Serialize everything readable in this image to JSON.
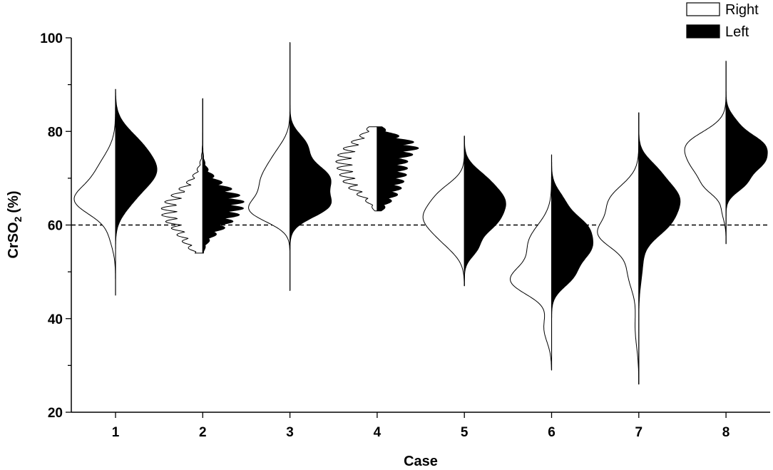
{
  "chart_data": {
    "type": "split-violin",
    "xlabel": "Case",
    "ylabel_main": "CrSO",
    "ylabel_sub": "2",
    "ylabel_unit": "(%)",
    "ylim": [
      20,
      100
    ],
    "yticks": [
      20,
      40,
      60,
      80,
      100
    ],
    "categories": [
      "1",
      "2",
      "3",
      "4",
      "5",
      "6",
      "7",
      "8"
    ],
    "reference_line": {
      "value": 60,
      "style": "dashed"
    },
    "legend": {
      "position": "top-right",
      "items": [
        {
          "label": "Right",
          "fill": "#ffffff"
        },
        {
          "label": "Left",
          "fill": "#000000"
        }
      ]
    },
    "series": [
      {
        "name": "Right",
        "side": "left",
        "fill": "#ffffff",
        "ranges": [
          [
            45,
            89
          ],
          [
            54,
            87
          ],
          [
            46,
            99
          ],
          [
            63,
            81
          ],
          [
            47,
            79
          ],
          [
            29,
            75
          ],
          [
            26,
            84
          ],
          [
            56,
            95
          ]
        ],
        "peaks": [
          [
            [
              65,
              1.0,
              3.0
            ],
            [
              71,
              0.5,
              4.0
            ],
            [
              58,
              0.15,
              3.0
            ]
          ],
          [
            [
              63,
              1.0,
              4.5
            ],
            [
              56,
              0.15,
              2.0
            ]
          ],
          [
            [
              63,
              1.0,
              2.5
            ],
            [
              69,
              0.8,
              3.5
            ],
            [
              75,
              0.3,
              3.0
            ]
          ],
          [
            [
              74,
              1.0,
              4.0
            ],
            [
              68,
              0.4,
              2.5
            ]
          ],
          [
            [
              62,
              1.0,
              3.0
            ],
            [
              57,
              0.5,
              3.0
            ],
            [
              67,
              0.5,
              2.5
            ]
          ],
          [
            [
              48,
              1.0,
              3.0
            ],
            [
              56,
              0.6,
              4.0
            ],
            [
              38,
              0.2,
              3.0
            ]
          ],
          [
            [
              58,
              1.0,
              3.0
            ],
            [
              65,
              0.8,
              3.5
            ],
            [
              50,
              0.3,
              4.0
            ],
            [
              38,
              0.1,
              4.0
            ]
          ],
          [
            [
              77,
              1.0,
              3.0
            ],
            [
              72,
              0.6,
              2.5
            ],
            [
              68,
              0.4,
              2.0
            ],
            [
              63,
              0.1,
              2.0
            ]
          ]
        ],
        "ripple": [
          0,
          1,
          0,
          1,
          0,
          0,
          0,
          0
        ]
      },
      {
        "name": "Left",
        "side": "right",
        "fill": "#000000",
        "ranges": [
          [
            45,
            89
          ],
          [
            54,
            87
          ],
          [
            46,
            99
          ],
          [
            63,
            81
          ],
          [
            47,
            79
          ],
          [
            29,
            75
          ],
          [
            26,
            84
          ],
          [
            56,
            95
          ]
        ],
        "peaks": [
          [
            [
              71,
              1.0,
              3.5
            ],
            [
              77,
              0.6,
              3.5
            ],
            [
              65,
              0.3,
              3.0
            ]
          ],
          [
            [
              65,
              1.0,
              3.5
            ],
            [
              60,
              0.3,
              2.5
            ]
          ],
          [
            [
              70,
              1.0,
              3.0
            ],
            [
              64,
              0.9,
              2.5
            ],
            [
              77,
              0.4,
              2.5
            ]
          ],
          [
            [
              77,
              1.0,
              2.0
            ],
            [
              72,
              0.7,
              2.5
            ],
            [
              67,
              0.5,
              2.5
            ]
          ],
          [
            [
              65,
              1.0,
              3.0
            ],
            [
              60,
              0.6,
              2.5
            ],
            [
              70,
              0.4,
              2.5
            ],
            [
              55,
              0.3,
              2.0
            ]
          ],
          [
            [
              55,
              1.0,
              3.0
            ],
            [
              60,
              0.7,
              2.5
            ],
            [
              49,
              0.5,
              2.5
            ],
            [
              65,
              0.3,
              2.5
            ]
          ],
          [
            [
              66,
              1.0,
              3.5
            ],
            [
              60,
              0.6,
              3.0
            ],
            [
              72,
              0.3,
              2.5
            ],
            [
              52,
              0.1,
              4.0
            ]
          ],
          [
            [
              77,
              1.0,
              2.5
            ],
            [
              73,
              0.7,
              2.0
            ],
            [
              69,
              0.5,
              2.0
            ],
            [
              82,
              0.2,
              2.0
            ]
          ]
        ],
        "ripple": [
          0,
          1,
          0,
          1,
          0,
          0,
          0,
          0
        ]
      }
    ]
  }
}
